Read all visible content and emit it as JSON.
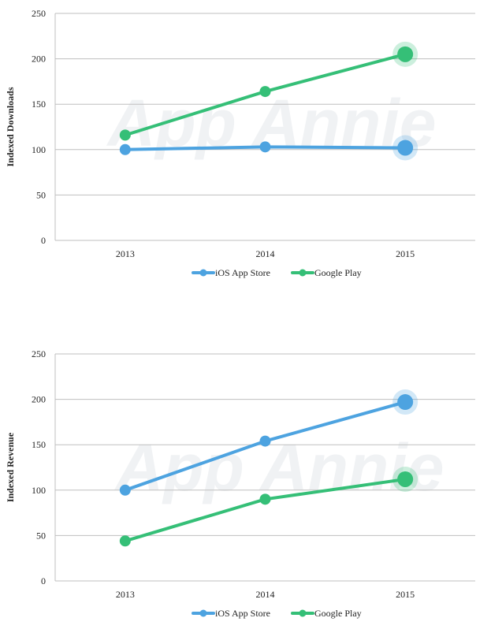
{
  "colors": {
    "ios": "#4da3e0",
    "google_play": "#35bf77",
    "grid": "#bfbfbf",
    "axis_text": "#222222",
    "watermark": "#f0f2f4"
  },
  "watermark_text": "App Annie",
  "chart_data": [
    {
      "type": "line",
      "title": "",
      "xlabel": "",
      "ylabel": "Indexed Downloads",
      "categories": [
        "2013",
        "2014",
        "2015"
      ],
      "ylim": [
        0,
        250
      ],
      "yticks": [
        "0",
        "50",
        "100",
        "150",
        "200",
        "250"
      ],
      "grid": true,
      "legend": "bottom-center",
      "series": [
        {
          "name": "iOS App Store",
          "values": [
            100,
            103,
            102
          ],
          "color": "#4da3e0"
        },
        {
          "name": "Google Play",
          "values": [
            116,
            164,
            205
          ],
          "color": "#35bf77"
        }
      ]
    },
    {
      "type": "line",
      "title": "",
      "xlabel": "",
      "ylabel": "Indexed Revenue",
      "categories": [
        "2013",
        "2014",
        "2015"
      ],
      "ylim": [
        0,
        250
      ],
      "yticks": [
        "0",
        "50",
        "100",
        "150",
        "200",
        "250"
      ],
      "grid": true,
      "legend": "bottom-center",
      "series": [
        {
          "name": "iOS App Store",
          "values": [
            100,
            154,
            197
          ],
          "color": "#4da3e0"
        },
        {
          "name": "Google Play",
          "values": [
            44,
            90,
            112
          ],
          "color": "#35bf77"
        }
      ]
    }
  ]
}
